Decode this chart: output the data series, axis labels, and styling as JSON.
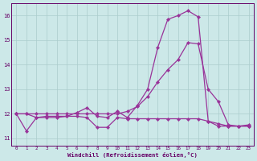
{
  "xlabel": "Windchill (Refroidissement éolien,°C)",
  "bg_color": "#cce8e8",
  "line_color": "#993399",
  "grid_color": "#aacccc",
  "axis_color": "#660066",
  "text_color": "#660066",
  "xlim": [
    -0.5,
    23.5
  ],
  "ylim": [
    10.7,
    16.5
  ],
  "xticks": [
    0,
    1,
    2,
    3,
    4,
    5,
    6,
    7,
    8,
    9,
    10,
    11,
    12,
    13,
    14,
    15,
    16,
    17,
    18,
    19,
    20,
    21,
    22,
    23
  ],
  "yticks": [
    11,
    12,
    13,
    14,
    15,
    16
  ],
  "line1_x": [
    0,
    1,
    2,
    3,
    4,
    5,
    6,
    7,
    8,
    9,
    10,
    11,
    12,
    13,
    14,
    15,
    16,
    17,
    18,
    19,
    20,
    21,
    22,
    23
  ],
  "line1_y": [
    12.0,
    12.0,
    11.85,
    11.85,
    11.85,
    11.9,
    12.05,
    12.25,
    11.9,
    11.85,
    12.1,
    11.85,
    12.35,
    13.0,
    14.7,
    15.85,
    16.0,
    16.2,
    15.95,
    11.7,
    11.5,
    11.5,
    11.5,
    11.5
  ],
  "line2_x": [
    0,
    1,
    2,
    3,
    4,
    5,
    6,
    7,
    8,
    9,
    10,
    11,
    12,
    13,
    14,
    15,
    16,
    17,
    18,
    19,
    20,
    21,
    22,
    23
  ],
  "line2_y": [
    12.0,
    12.0,
    12.0,
    12.0,
    12.0,
    12.0,
    12.0,
    12.0,
    12.0,
    12.0,
    12.0,
    12.1,
    12.3,
    12.7,
    13.3,
    13.8,
    14.2,
    14.9,
    14.85,
    13.0,
    12.5,
    11.55,
    11.5,
    11.55
  ],
  "line3_x": [
    0,
    1,
    2,
    3,
    4,
    5,
    6,
    7,
    8,
    9,
    10,
    11,
    12,
    13,
    14,
    15,
    16,
    17,
    18,
    19,
    20,
    21,
    22,
    23
  ],
  "line3_y": [
    12.0,
    11.3,
    11.85,
    11.9,
    11.9,
    11.9,
    11.9,
    11.85,
    11.45,
    11.45,
    11.85,
    11.8,
    11.8,
    11.8,
    11.8,
    11.8,
    11.8,
    11.8,
    11.8,
    11.7,
    11.6,
    11.5,
    11.5,
    11.5
  ]
}
